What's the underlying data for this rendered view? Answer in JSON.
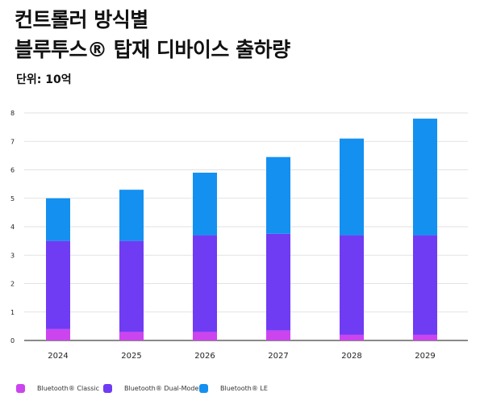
{
  "header": {
    "title_line1": "컨트롤러 방식별",
    "title_line2": "블루투스® 탑재 디바이스 출하량",
    "unit": "단위: 10억"
  },
  "colors": {
    "classic": "#cc44ee",
    "dual_mode": "#6f3cf4",
    "le": "#1490f0",
    "grid": "#d9d9d9",
    "axis": "#444444"
  },
  "chart_data": {
    "type": "bar",
    "stacked": true,
    "categories": [
      "2024",
      "2025",
      "2026",
      "2027",
      "2028",
      "2029"
    ],
    "series": [
      {
        "name": "Bluetooth® Classic",
        "values": [
          0.4,
          0.3,
          0.3,
          0.35,
          0.2,
          0.2
        ]
      },
      {
        "name": "Bluetooth® Dual-Mode",
        "values": [
          3.1,
          3.2,
          3.4,
          3.4,
          3.5,
          3.5
        ]
      },
      {
        "name": "Bluetooth® LE",
        "values": [
          1.5,
          1.8,
          2.2,
          2.7,
          3.4,
          4.1
        ]
      }
    ],
    "ylim": [
      0,
      8
    ],
    "yticks": [
      "0",
      "1",
      "2",
      "3",
      "4",
      "5",
      "6",
      "7",
      "8"
    ],
    "grid": true,
    "legend_position": "bottom"
  }
}
